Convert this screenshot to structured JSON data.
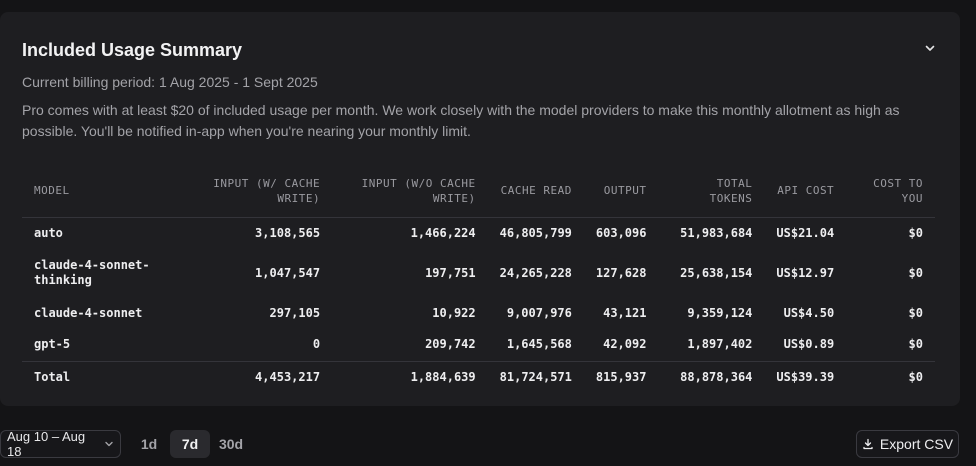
{
  "summary": {
    "title": "Included Usage Summary",
    "billing_period": "Current billing period: 1 Aug 2025 - 1 Sept 2025",
    "description": "Pro comes with at least $20 of included usage per month. We work closely with the model providers to make this monthly allotment as high as possible. You'll be notified in-app when you're nearing your monthly limit.",
    "collapse_icon": "chevron-down-icon"
  },
  "table": {
    "headers": [
      "MODEL",
      "INPUT (W/ CACHE WRITE)",
      "INPUT (W/O CACHE WRITE)",
      "CACHE READ",
      "OUTPUT",
      "TOTAL TOKENS",
      "API COST",
      "COST TO YOU"
    ],
    "rows": [
      [
        "auto",
        "3,108,565",
        "1,466,224",
        "46,805,799",
        "603,096",
        "51,983,684",
        "US$21.04",
        "$0"
      ],
      [
        "claude-4-sonnet-thinking",
        "1,047,547",
        "197,751",
        "24,265,228",
        "127,628",
        "25,638,154",
        "US$12.97",
        "$0"
      ],
      [
        "claude-4-sonnet",
        "297,105",
        "10,922",
        "9,007,976",
        "43,121",
        "9,359,124",
        "US$4.50",
        "$0"
      ],
      [
        "gpt-5",
        "0",
        "209,742",
        "1,645,568",
        "42,092",
        "1,897,402",
        "US$0.89",
        "$0"
      ]
    ],
    "total": [
      "Total",
      "4,453,217",
      "1,884,639",
      "81,724,571",
      "815,937",
      "88,878,364",
      "US$39.39",
      "$0"
    ]
  },
  "footer": {
    "date_range": "Aug 10 – Aug 18",
    "date_range_icon": "chevron-down-icon",
    "ranges": [
      "1d",
      "7d",
      "30d"
    ],
    "active_range": "7d",
    "export_label": "Export CSV",
    "export_icon": "download-icon"
  }
}
